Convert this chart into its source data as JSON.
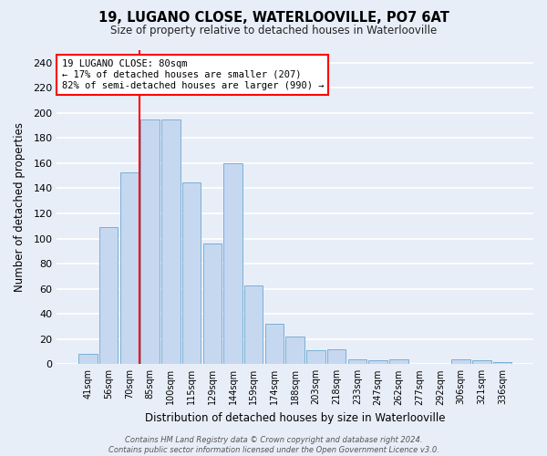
{
  "title": "19, LUGANO CLOSE, WATERLOOVILLE, PO7 6AT",
  "subtitle": "Size of property relative to detached houses in Waterlooville",
  "xlabel": "Distribution of detached houses by size in Waterlooville",
  "ylabel": "Number of detached properties",
  "categories": [
    "41sqm",
    "56sqm",
    "70sqm",
    "85sqm",
    "100sqm",
    "115sqm",
    "129sqm",
    "144sqm",
    "159sqm",
    "174sqm",
    "188sqm",
    "203sqm",
    "218sqm",
    "233sqm",
    "247sqm",
    "262sqm",
    "277sqm",
    "292sqm",
    "306sqm",
    "321sqm",
    "336sqm"
  ],
  "values": [
    8,
    109,
    153,
    195,
    195,
    145,
    96,
    160,
    63,
    32,
    22,
    11,
    12,
    4,
    3,
    4,
    0,
    0,
    4,
    3,
    2
  ],
  "bar_color": "#c5d8f0",
  "bar_edge_color": "#7bafd4",
  "vline_x_index": 2.5,
  "vline_color": "red",
  "annotation_text": "19 LUGANO CLOSE: 80sqm\n← 17% of detached houses are smaller (207)\n82% of semi-detached houses are larger (990) →",
  "ylim": [
    0,
    250
  ],
  "yticks": [
    0,
    20,
    40,
    60,
    80,
    100,
    120,
    140,
    160,
    180,
    200,
    220,
    240
  ],
  "bg_color": "#e8eef8",
  "grid_color": "#ffffff",
  "footer": "Contains HM Land Registry data © Crown copyright and database right 2024.\nContains public sector information licensed under the Open Government Licence v3.0."
}
